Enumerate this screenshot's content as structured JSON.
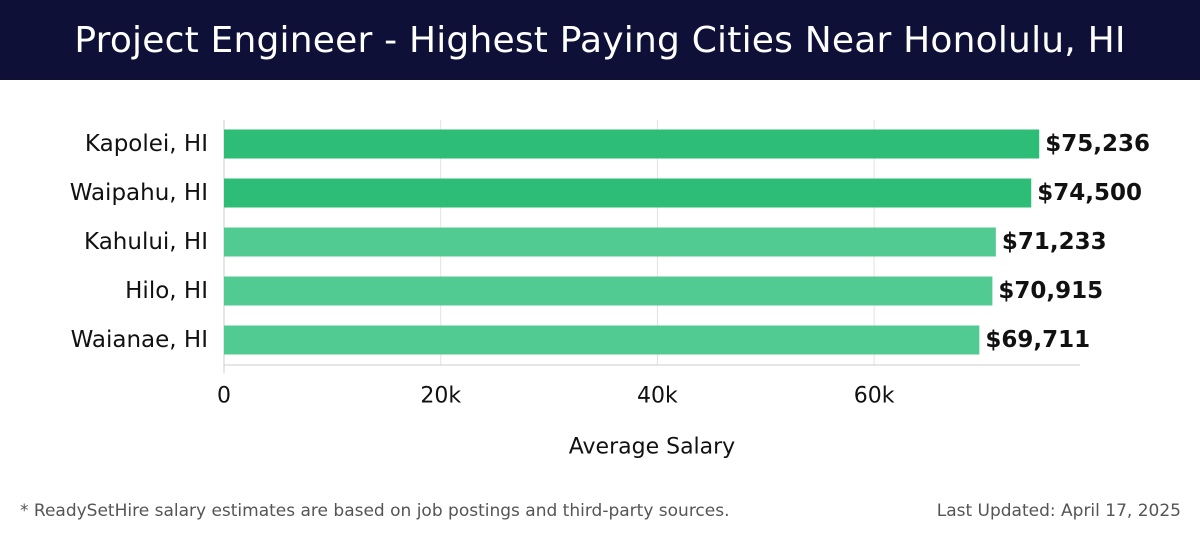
{
  "header": {
    "title": "Project Engineer - Highest Paying Cities Near Honolulu, HI"
  },
  "chart_data": {
    "type": "bar",
    "orientation": "horizontal",
    "title": "Project Engineer - Highest Paying Cities Near Honolulu, HI",
    "categories": [
      "Kapolei, HI",
      "Waipahu, HI",
      "Kahului, HI",
      "Hilo, HI",
      "Waianae, HI"
    ],
    "values": [
      75236,
      74500,
      71233,
      70915,
      69711
    ],
    "value_labels": [
      "$75,236",
      "$74,500",
      "$71,233",
      "$70,915",
      "$69,711"
    ],
    "xlabel": "Average Salary",
    "ylabel": "",
    "xlim": [
      0,
      79000
    ],
    "xticks": [
      0,
      20000,
      40000,
      60000
    ],
    "xtick_labels": [
      "0",
      "20k",
      "40k",
      "60k"
    ],
    "grid": true,
    "colors": {
      "top": "#2dbd77",
      "rest": "#52cb93",
      "grid": "#e2e2e2"
    }
  },
  "footer": {
    "note": "* ReadySetHire salary estimates are based on job postings and third-party sources.",
    "updated": "Last Updated: April 17, 2025"
  }
}
